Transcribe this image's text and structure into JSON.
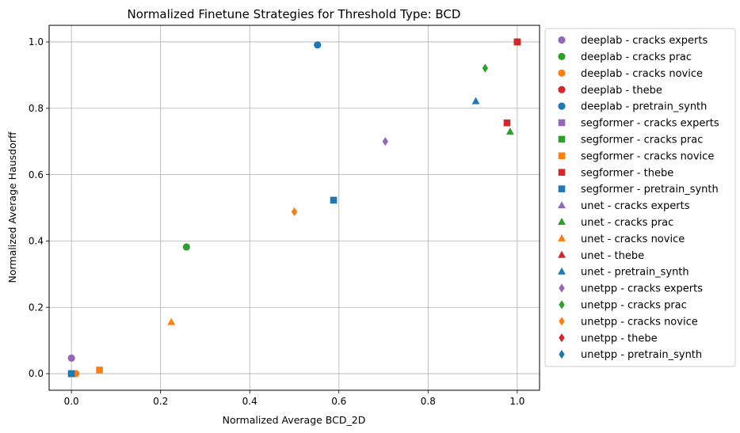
{
  "chart_data": {
    "type": "scatter",
    "title": "Normalized Finetune Strategies for Threshold Type: BCD",
    "xlabel": "Normalized Average BCD_2D",
    "ylabel": "Normalized Average Hausdorff",
    "xlim": [
      -0.05,
      1.05
    ],
    "ylim": [
      -0.05,
      1.05
    ],
    "xticks": [
      "0.0",
      "0.2",
      "0.4",
      "0.6",
      "0.8",
      "1.0"
    ],
    "yticks": [
      "0.0",
      "0.2",
      "0.4",
      "0.6",
      "0.8",
      "1.0"
    ],
    "grid": true,
    "legend_position": "outside-right",
    "colors": {
      "cracks experts": "#9467bd",
      "cracks prac": "#2ca02c",
      "cracks novice": "#ff7f0e",
      "thebe": "#d62728",
      "pretrain_synth": "#1f77b4"
    },
    "series": [
      {
        "name": "deeplab - cracks experts",
        "marker": "circle",
        "color": "#9467bd",
        "points": [
          [
            0.0,
            0.047
          ]
        ]
      },
      {
        "name": "deeplab - cracks prac",
        "marker": "circle",
        "color": "#2ca02c",
        "points": [
          [
            0.258,
            0.382
          ]
        ]
      },
      {
        "name": "deeplab - cracks novice",
        "marker": "circle",
        "color": "#ff7f0e",
        "points": [
          [
            0.01,
            0.0
          ]
        ]
      },
      {
        "name": "deeplab - thebe",
        "marker": "circle",
        "color": "#d62728",
        "points": [
          [
            1.0,
            1.0
          ]
        ]
      },
      {
        "name": "deeplab - pretrain_synth",
        "marker": "circle",
        "color": "#1f77b4",
        "points": [
          [
            0.552,
            0.991
          ]
        ]
      },
      {
        "name": "segformer - cracks experts",
        "marker": "square",
        "color": "#9467bd",
        "points": [
          [
            0.0,
            0.0
          ]
        ]
      },
      {
        "name": "segformer - cracks prac",
        "marker": "square",
        "color": "#2ca02c",
        "points": [
          [
            1.0,
            1.0
          ]
        ]
      },
      {
        "name": "segformer - cracks novice",
        "marker": "square",
        "color": "#ff7f0e",
        "points": [
          [
            0.063,
            0.011
          ]
        ]
      },
      {
        "name": "segformer - thebe",
        "marker": "square",
        "color": "#d62728",
        "points": [
          [
            0.977,
            0.756
          ],
          [
            1.0,
            1.0
          ]
        ]
      },
      {
        "name": "segformer - pretrain_synth",
        "marker": "square",
        "color": "#1f77b4",
        "points": [
          [
            0.588,
            0.523
          ],
          [
            0.0,
            0.0
          ]
        ]
      },
      {
        "name": "unet - cracks experts",
        "marker": "triangle",
        "color": "#9467bd",
        "points": []
      },
      {
        "name": "unet - cracks prac",
        "marker": "triangle",
        "color": "#2ca02c",
        "points": [
          [
            0.984,
            0.729
          ]
        ]
      },
      {
        "name": "unet - cracks novice",
        "marker": "triangle",
        "color": "#ff7f0e",
        "points": [
          [
            0.224,
            0.155
          ]
        ]
      },
      {
        "name": "unet - thebe",
        "marker": "triangle",
        "color": "#d62728",
        "points": []
      },
      {
        "name": "unet - pretrain_synth",
        "marker": "triangle",
        "color": "#1f77b4",
        "points": [
          [
            0.907,
            0.821
          ]
        ]
      },
      {
        "name": "unetpp - cracks experts",
        "marker": "diamond",
        "color": "#9467bd",
        "points": [
          [
            0.704,
            0.7
          ]
        ]
      },
      {
        "name": "unetpp - cracks prac",
        "marker": "diamond",
        "color": "#2ca02c",
        "points": [
          [
            0.928,
            0.921
          ]
        ]
      },
      {
        "name": "unetpp - cracks novice",
        "marker": "diamond",
        "color": "#ff7f0e",
        "points": [
          [
            0.5,
            0.488
          ]
        ]
      },
      {
        "name": "unetpp - thebe",
        "marker": "diamond",
        "color": "#d62728",
        "points": []
      },
      {
        "name": "unetpp - pretrain_synth",
        "marker": "diamond",
        "color": "#1f77b4",
        "points": []
      }
    ]
  }
}
